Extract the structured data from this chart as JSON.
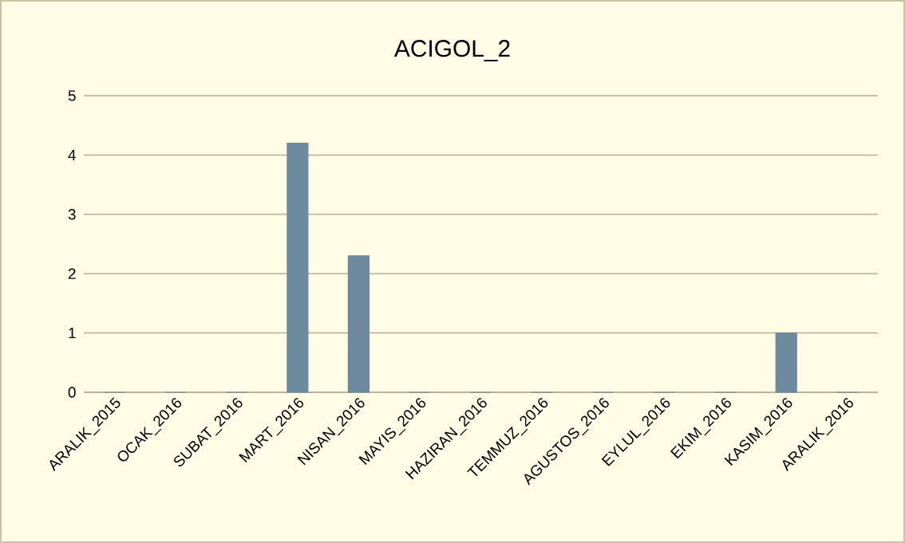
{
  "chart_data": {
    "type": "bar",
    "title": "ACIGOL_2",
    "categories": [
      "ARALIK_2015",
      "OCAK_2016",
      "SUBAT_2016",
      "MART_2016",
      "NISAN_2016",
      "MAYIS_2016",
      "HAZIRAN_2016",
      "TEMMUZ_2016",
      "AGUSTOS_2016",
      "EYLUL_2016",
      "EKIM_2016",
      "KASIM_2016",
      "ARALIK_2016"
    ],
    "values": [
      0,
      0,
      0,
      4.2,
      2.3,
      0,
      0,
      0,
      0,
      0,
      0,
      1.0,
      0
    ],
    "color": "#6d8a9e",
    "ylim": [
      0,
      5
    ],
    "yticks": [
      0,
      1,
      2,
      3,
      4,
      5
    ],
    "grid": "y"
  }
}
